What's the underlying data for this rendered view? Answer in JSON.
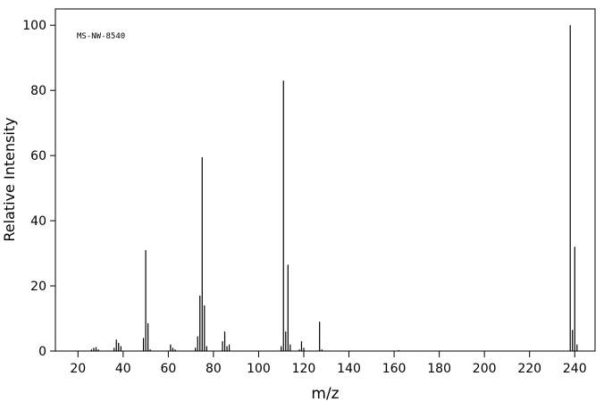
{
  "chart_data": {
    "type": "bar",
    "annotation": "MS-NW-8540",
    "xlabel": "m/z",
    "ylabel": "Relative Intensity",
    "x": [
      26,
      27,
      28,
      29,
      36,
      37,
      38,
      39,
      49,
      50,
      51,
      52,
      61,
      62,
      63,
      72,
      73,
      74,
      75,
      76,
      77,
      84,
      85,
      86,
      87,
      110,
      111,
      112,
      113,
      114,
      118,
      119,
      120,
      127,
      128,
      162,
      238,
      239,
      240,
      241
    ],
    "values": [
      0.5,
      1,
      1.2,
      0.5,
      1,
      3.5,
      2.5,
      1.5,
      4,
      31,
      8.5,
      0.5,
      2,
      1,
      0.5,
      1,
      4.5,
      17,
      59.5,
      14,
      1.5,
      3,
      6,
      1.5,
      2,
      1.5,
      83,
      6,
      26.5,
      2,
      0.5,
      3,
      1,
      9,
      0.5,
      0.3,
      100,
      6.5,
      32,
      2
    ],
    "color": "#000000",
    "xlim": [
      10,
      249
    ],
    "xticks": [
      20,
      40,
      60,
      80,
      100,
      120,
      140,
      160,
      180,
      200,
      220,
      240
    ],
    "ylim": [
      0,
      105
    ],
    "yticks": [
      0,
      20,
      40,
      60,
      80,
      100
    ]
  }
}
